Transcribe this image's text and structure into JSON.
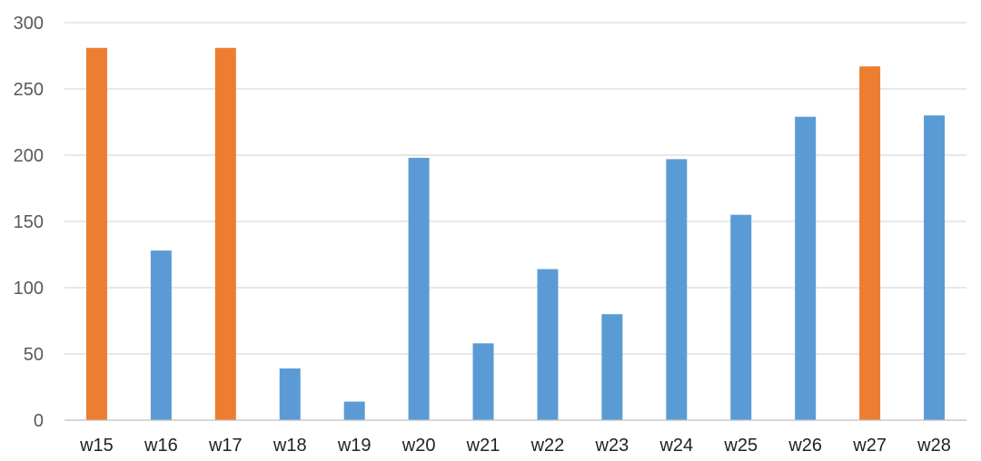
{
  "chart_data": {
    "type": "bar",
    "title": "",
    "xlabel": "",
    "ylabel": "",
    "ylim": [
      0,
      300
    ],
    "yticks": [
      0,
      50,
      100,
      150,
      200,
      250,
      300
    ],
    "grid": true,
    "legend": "none",
    "categories": [
      "w15",
      "w16",
      "w17",
      "w18",
      "w19",
      "w20",
      "w21",
      "w22",
      "w23",
      "w24",
      "w25",
      "w26",
      "w27",
      "w28"
    ],
    "values": [
      281,
      128,
      281,
      39,
      14,
      198,
      58,
      114,
      80,
      197,
      155,
      229,
      267,
      230
    ],
    "highlighted": [
      true,
      false,
      true,
      false,
      false,
      false,
      false,
      false,
      false,
      false,
      false,
      false,
      true,
      false
    ],
    "colors": {
      "default": "#5B9BD5",
      "highlight": "#ED7D31",
      "grid": "#D9D9D9",
      "axis": "#BFBFBF"
    }
  }
}
